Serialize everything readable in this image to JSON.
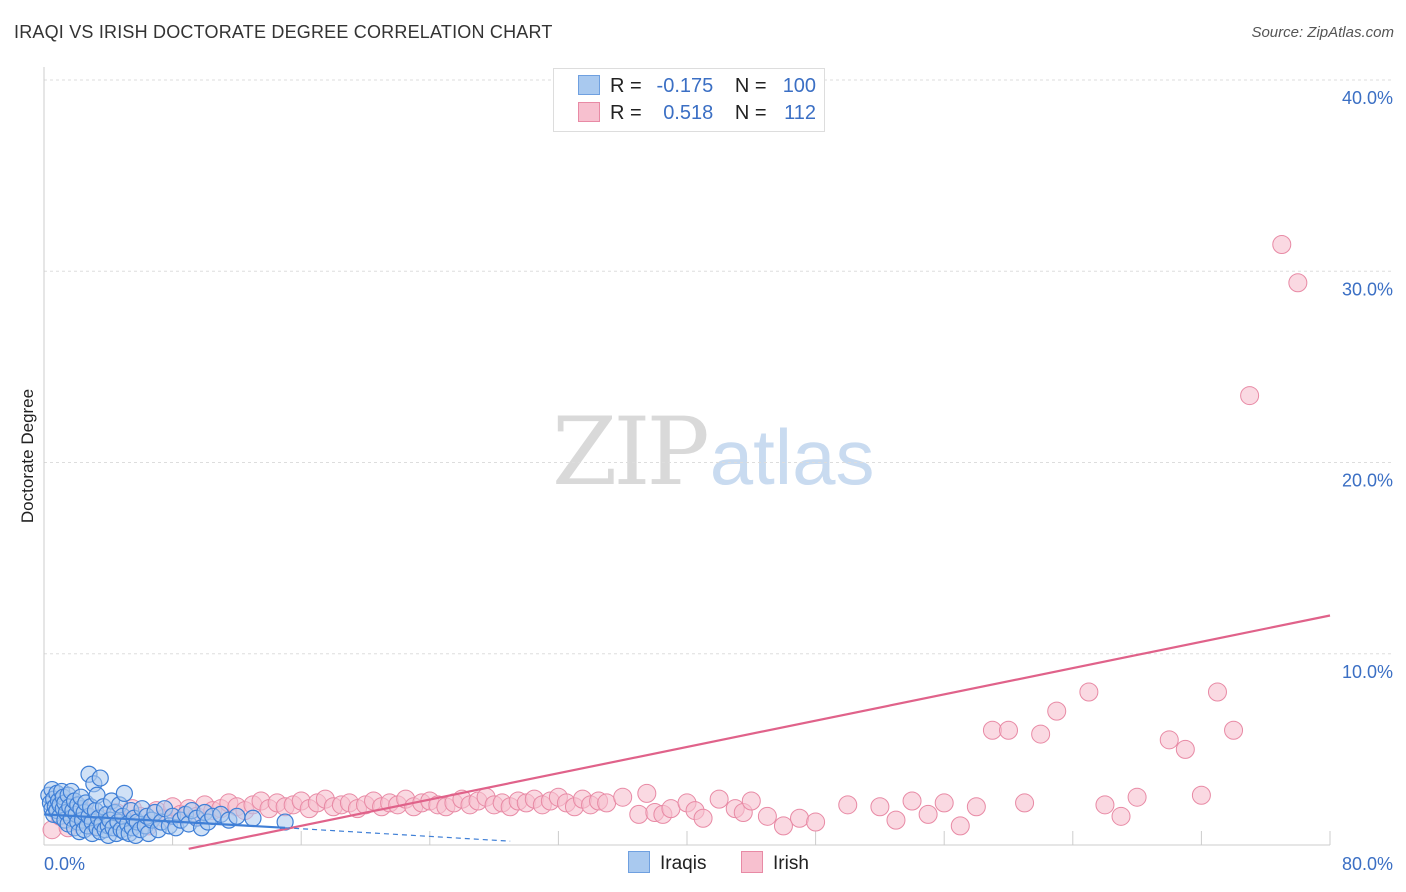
{
  "title": "IRAQI VS IRISH DOCTORATE DEGREE CORRELATION CHART",
  "source": "Source: ZipAtlas.com",
  "watermark": {
    "zip": "ZIP",
    "atlas": "atlas"
  },
  "colors": {
    "iraqis_fill": "#a9c9ef",
    "iraqis_stroke": "#3f7fd6",
    "iraqis_line": "#3f7fd6",
    "irish_fill": "#f7c0cf",
    "irish_stroke": "#e88aa5",
    "irish_line": "#e0628a",
    "accent_text": "#3b6fc4"
  },
  "legend": {
    "rows": [
      {
        "r_label": "R =",
        "r_value": "-0.175",
        "n_label": "N =",
        "n_value": "100"
      },
      {
        "r_label": "R =",
        "r_value": "0.518",
        "n_label": "N =",
        "n_value": "112"
      }
    ]
  },
  "chart_data": {
    "type": "scatter",
    "title": "IRAQI VS IRISH DOCTORATE DEGREE CORRELATION CHART",
    "xlabel": "",
    "ylabel": "Doctorate Degree",
    "xlim": [
      0,
      80
    ],
    "ylim": [
      0,
      40
    ],
    "x_tick_labels": [
      "0.0%",
      "80.0%"
    ],
    "y_ticks": [
      10,
      20,
      30,
      40
    ],
    "y_tick_labels": [
      "10.0%",
      "20.0%",
      "30.0%",
      "40.0%"
    ],
    "grid": true,
    "legend_position": "bottom",
    "series": [
      {
        "name": "Iraqis",
        "r": -0.175,
        "n": 100,
        "trend": {
          "x": [
            0,
            15
          ],
          "y": [
            1.6,
            0.9
          ]
        },
        "trend_extension": {
          "x": [
            15,
            29
          ],
          "y": [
            0.9,
            0.2
          ]
        },
        "points": [
          [
            0.3,
            2.6
          ],
          [
            0.4,
            2.2
          ],
          [
            0.5,
            1.9
          ],
          [
            0.5,
            2.9
          ],
          [
            0.6,
            1.6
          ],
          [
            0.6,
            2.4
          ],
          [
            0.7,
            2.0
          ],
          [
            0.8,
            2.7
          ],
          [
            0.8,
            1.8
          ],
          [
            0.9,
            2.3
          ],
          [
            1.0,
            1.5
          ],
          [
            1.0,
            2.1
          ],
          [
            1.1,
            2.8
          ],
          [
            1.2,
            1.9
          ],
          [
            1.2,
            2.5
          ],
          [
            1.3,
            1.3
          ],
          [
            1.3,
            2.2
          ],
          [
            1.4,
            1.7
          ],
          [
            1.5,
            2.6
          ],
          [
            1.5,
            1.1
          ],
          [
            1.6,
            2.0
          ],
          [
            1.7,
            1.4
          ],
          [
            1.7,
            2.8
          ],
          [
            1.8,
            1.8
          ],
          [
            1.9,
            2.3
          ],
          [
            1.9,
            0.9
          ],
          [
            2.0,
            1.6
          ],
          [
            2.1,
            2.1
          ],
          [
            2.1,
            1.2
          ],
          [
            2.2,
            0.7
          ],
          [
            2.3,
            1.9
          ],
          [
            2.3,
            2.5
          ],
          [
            2.4,
            1.3
          ],
          [
            2.5,
            1.7
          ],
          [
            2.5,
            0.8
          ],
          [
            2.6,
            2.2
          ],
          [
            2.7,
            1.0
          ],
          [
            2.8,
            1.5
          ],
          [
            2.8,
            3.7
          ],
          [
            2.9,
            2.0
          ],
          [
            3.0,
            1.2
          ],
          [
            3.0,
            0.6
          ],
          [
            3.1,
            3.2
          ],
          [
            3.2,
            1.8
          ],
          [
            3.3,
            0.9
          ],
          [
            3.3,
            2.6
          ],
          [
            3.4,
            1.4
          ],
          [
            3.5,
            3.5
          ],
          [
            3.5,
            0.7
          ],
          [
            3.6,
            1.1
          ],
          [
            3.7,
            2.0
          ],
          [
            3.8,
            0.8
          ],
          [
            3.9,
            1.6
          ],
          [
            4.0,
            1.0
          ],
          [
            4.0,
            0.5
          ],
          [
            4.1,
            1.3
          ],
          [
            4.2,
            2.3
          ],
          [
            4.3,
            0.9
          ],
          [
            4.4,
            1.7
          ],
          [
            4.5,
            0.6
          ],
          [
            4.6,
            1.2
          ],
          [
            4.7,
            2.1
          ],
          [
            4.8,
            0.8
          ],
          [
            4.9,
            1.5
          ],
          [
            5.0,
            0.7
          ],
          [
            5.0,
            2.7
          ],
          [
            5.2,
            1.1
          ],
          [
            5.3,
            0.6
          ],
          [
            5.4,
            1.8
          ],
          [
            5.5,
            0.9
          ],
          [
            5.6,
            1.4
          ],
          [
            5.7,
            0.5
          ],
          [
            5.8,
            1.2
          ],
          [
            6.0,
            0.8
          ],
          [
            6.1,
            1.9
          ],
          [
            6.3,
            1.0
          ],
          [
            6.4,
            1.5
          ],
          [
            6.5,
            0.6
          ],
          [
            6.7,
            1.3
          ],
          [
            6.9,
            1.7
          ],
          [
            7.1,
            0.8
          ],
          [
            7.3,
            1.2
          ],
          [
            7.5,
            1.9
          ],
          [
            7.8,
            1.0
          ],
          [
            8.0,
            1.5
          ],
          [
            8.2,
            0.9
          ],
          [
            8.5,
            1.3
          ],
          [
            8.8,
            1.6
          ],
          [
            9.0,
            1.1
          ],
          [
            9.2,
            1.8
          ],
          [
            9.5,
            1.4
          ],
          [
            9.8,
            0.9
          ],
          [
            10.0,
            1.7
          ],
          [
            10.2,
            1.2
          ],
          [
            10.5,
            1.5
          ],
          [
            11.0,
            1.6
          ],
          [
            11.5,
            1.3
          ],
          [
            12.0,
            1.5
          ],
          [
            13.0,
            1.4
          ],
          [
            15.0,
            1.2
          ]
        ]
      },
      {
        "name": "Irish",
        "r": 0.518,
        "n": 112,
        "trend": {
          "x": [
            9,
            80
          ],
          "y": [
            -0.2,
            12.0
          ]
        },
        "points": [
          [
            0.5,
            0.8
          ],
          [
            1.0,
            1.5
          ],
          [
            1.5,
            0.9
          ],
          [
            2.0,
            1.2
          ],
          [
            2.5,
            1.8
          ],
          [
            3.0,
            1.0
          ],
          [
            3.5,
            1.4
          ],
          [
            4.0,
            1.1
          ],
          [
            4.5,
            1.7
          ],
          [
            5.0,
            1.3
          ],
          [
            5.5,
            1.9
          ],
          [
            6.0,
            1.5
          ],
          [
            6.5,
            1.0
          ],
          [
            7.0,
            1.8
          ],
          [
            7.5,
            1.4
          ],
          [
            8.0,
            2.0
          ],
          [
            8.5,
            1.6
          ],
          [
            9.0,
            1.9
          ],
          [
            9.5,
            1.5
          ],
          [
            10.0,
            2.1
          ],
          [
            10.5,
            1.8
          ],
          [
            11.0,
            1.9
          ],
          [
            11.5,
            2.2
          ],
          [
            12.0,
            2.0
          ],
          [
            12.5,
            1.8
          ],
          [
            13.0,
            2.1
          ],
          [
            13.5,
            2.3
          ],
          [
            14.0,
            1.9
          ],
          [
            14.5,
            2.2
          ],
          [
            15.0,
            2.0
          ],
          [
            15.5,
            2.1
          ],
          [
            16.0,
            2.3
          ],
          [
            16.5,
            1.9
          ],
          [
            17.0,
            2.2
          ],
          [
            17.5,
            2.4
          ],
          [
            18.0,
            2.0
          ],
          [
            18.5,
            2.1
          ],
          [
            19.0,
            2.2
          ],
          [
            19.5,
            1.9
          ],
          [
            20.0,
            2.1
          ],
          [
            20.5,
            2.3
          ],
          [
            21.0,
            2.0
          ],
          [
            21.5,
            2.2
          ],
          [
            22.0,
            2.1
          ],
          [
            22.5,
            2.4
          ],
          [
            23.0,
            2.0
          ],
          [
            23.5,
            2.2
          ],
          [
            24.0,
            2.3
          ],
          [
            24.5,
            2.1
          ],
          [
            25.0,
            2.0
          ],
          [
            25.5,
            2.2
          ],
          [
            26.0,
            2.4
          ],
          [
            26.5,
            2.1
          ],
          [
            27.0,
            2.3
          ],
          [
            27.5,
            2.5
          ],
          [
            28.0,
            2.1
          ],
          [
            28.5,
            2.2
          ],
          [
            29.0,
            2.0
          ],
          [
            29.5,
            2.3
          ],
          [
            30.0,
            2.2
          ],
          [
            30.5,
            2.4
          ],
          [
            31.0,
            2.1
          ],
          [
            31.5,
            2.3
          ],
          [
            32.0,
            2.5
          ],
          [
            32.5,
            2.2
          ],
          [
            33.0,
            2.0
          ],
          [
            33.5,
            2.4
          ],
          [
            34.0,
            2.1
          ],
          [
            34.5,
            2.3
          ],
          [
            35.0,
            2.2
          ],
          [
            36.0,
            2.5
          ],
          [
            37.0,
            1.6
          ],
          [
            37.5,
            2.7
          ],
          [
            38.0,
            1.7
          ],
          [
            38.5,
            1.6
          ],
          [
            39.0,
            1.9
          ],
          [
            40.0,
            2.2
          ],
          [
            40.5,
            1.8
          ],
          [
            41.0,
            1.4
          ],
          [
            42.0,
            2.4
          ],
          [
            43.0,
            1.9
          ],
          [
            43.5,
            1.7
          ],
          [
            44.0,
            2.3
          ],
          [
            45.0,
            1.5
          ],
          [
            46.0,
            1.0
          ],
          [
            47.0,
            1.4
          ],
          [
            48.0,
            1.2
          ],
          [
            50.0,
            2.1
          ],
          [
            52.0,
            2.0
          ],
          [
            53.0,
            1.3
          ],
          [
            54.0,
            2.3
          ],
          [
            55.0,
            1.6
          ],
          [
            56.0,
            2.2
          ],
          [
            57.0,
            1.0
          ],
          [
            58.0,
            2.0
          ],
          [
            59.0,
            6.0
          ],
          [
            60.0,
            6.0
          ],
          [
            61.0,
            2.2
          ],
          [
            62.0,
            5.8
          ],
          [
            63.0,
            7.0
          ],
          [
            65.0,
            8.0
          ],
          [
            66.0,
            2.1
          ],
          [
            67.0,
            1.5
          ],
          [
            68.0,
            2.5
          ],
          [
            70.0,
            5.5
          ],
          [
            71.0,
            5.0
          ],
          [
            72.0,
            2.6
          ],
          [
            73.0,
            8.0
          ],
          [
            74.0,
            6.0
          ],
          [
            75.0,
            23.5
          ],
          [
            77.0,
            31.4
          ],
          [
            78.0,
            29.4
          ]
        ]
      }
    ]
  },
  "bottom_legend": [
    {
      "label": "Iraqis"
    },
    {
      "label": "Irish"
    }
  ]
}
